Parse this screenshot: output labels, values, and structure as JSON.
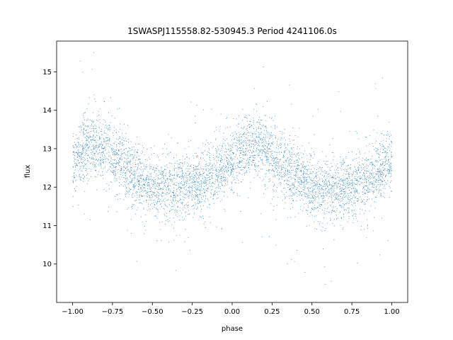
{
  "chart_data": {
    "type": "scatter",
    "title": "1SWASPJ115558.82-530945.3 Period 4241106.0s",
    "xlabel": "phase",
    "ylabel": "flux",
    "xlim": [
      -1.1,
      1.1
    ],
    "ylim": [
      9.0,
      15.8
    ],
    "xticks": [
      -1.0,
      -0.75,
      -0.5,
      -0.25,
      0.0,
      0.25,
      0.5,
      0.75,
      1.0
    ],
    "xtick_labels": [
      "−1.00",
      "−0.75",
      "−0.50",
      "−0.25",
      "0.00",
      "0.25",
      "0.50",
      "0.75",
      "1.00"
    ],
    "yticks": [
      10,
      11,
      12,
      13,
      14,
      15
    ],
    "ytick_labels": [
      "10",
      "11",
      "12",
      "13",
      "14",
      "15"
    ],
    "grid": false,
    "legend": "none",
    "series": [
      {
        "color": "#1f77b4",
        "marker": "dot",
        "profile": {
          "phase": [
            0.0,
            0.1,
            0.2,
            0.3,
            0.4,
            0.5,
            0.6,
            0.7,
            0.8,
            0.9,
            1.0
          ],
          "mean_flux": [
            12.7,
            13.1,
            13.0,
            12.6,
            12.3,
            12.0,
            11.95,
            12.0,
            12.1,
            12.4,
            12.7
          ],
          "spread": 0.55,
          "repeats_every": 1.0
        }
      }
    ]
  },
  "colors": {
    "points": "#1f77b4",
    "axes": "#000000",
    "background": "#ffffff"
  }
}
